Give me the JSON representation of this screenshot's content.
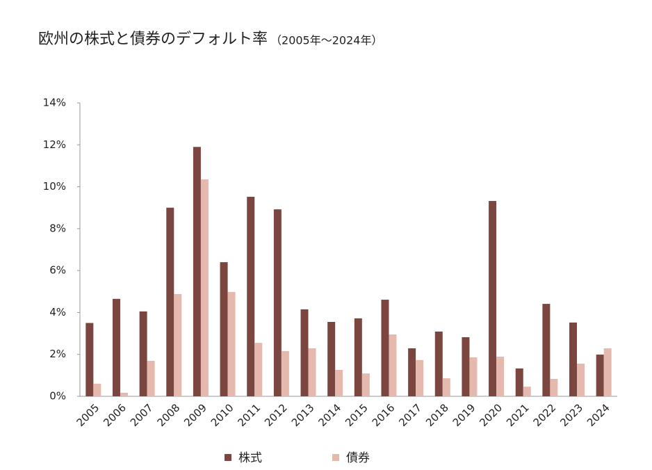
{
  "chart_data": {
    "type": "bar",
    "title": "欧州の株式と債券のデフォルト率",
    "subtitle": "（2005年～2024年）",
    "categories": [
      "2005",
      "2006",
      "2007",
      "2008",
      "2009",
      "2010",
      "2011",
      "2012",
      "2013",
      "2014",
      "2015",
      "2016",
      "2017",
      "2018",
      "2019",
      "2020",
      "2021",
      "2022",
      "2023",
      "2024"
    ],
    "series": [
      {
        "name": "株式",
        "color": "#7b4640",
        "values": [
          3.5,
          4.65,
          4.05,
          9.0,
          11.9,
          6.4,
          9.52,
          8.92,
          4.15,
          3.55,
          3.72,
          4.61,
          2.29,
          3.09,
          2.82,
          9.32,
          1.33,
          4.41,
          3.52,
          1.99
        ]
      },
      {
        "name": "債券",
        "color": "#e6b9ae",
        "values": [
          0.6,
          0.17,
          1.69,
          4.88,
          10.35,
          4.98,
          2.55,
          2.16,
          2.29,
          1.26,
          1.09,
          2.95,
          1.73,
          0.86,
          1.86,
          1.89,
          0.46,
          0.83,
          1.56,
          2.29
        ]
      }
    ],
    "ylim": [
      0,
      14
    ],
    "yticks": [
      {
        "value": 0,
        "label": "0%"
      },
      {
        "value": 2,
        "label": "2%"
      },
      {
        "value": 4,
        "label": "4%"
      },
      {
        "value": 6,
        "label": "6%"
      },
      {
        "value": 8,
        "label": "8%"
      },
      {
        "value": 10,
        "label": "10%"
      },
      {
        "value": 12,
        "label": "12%"
      },
      {
        "value": 14,
        "label": "14%"
      }
    ],
    "grid": false,
    "legend": "bottom"
  }
}
